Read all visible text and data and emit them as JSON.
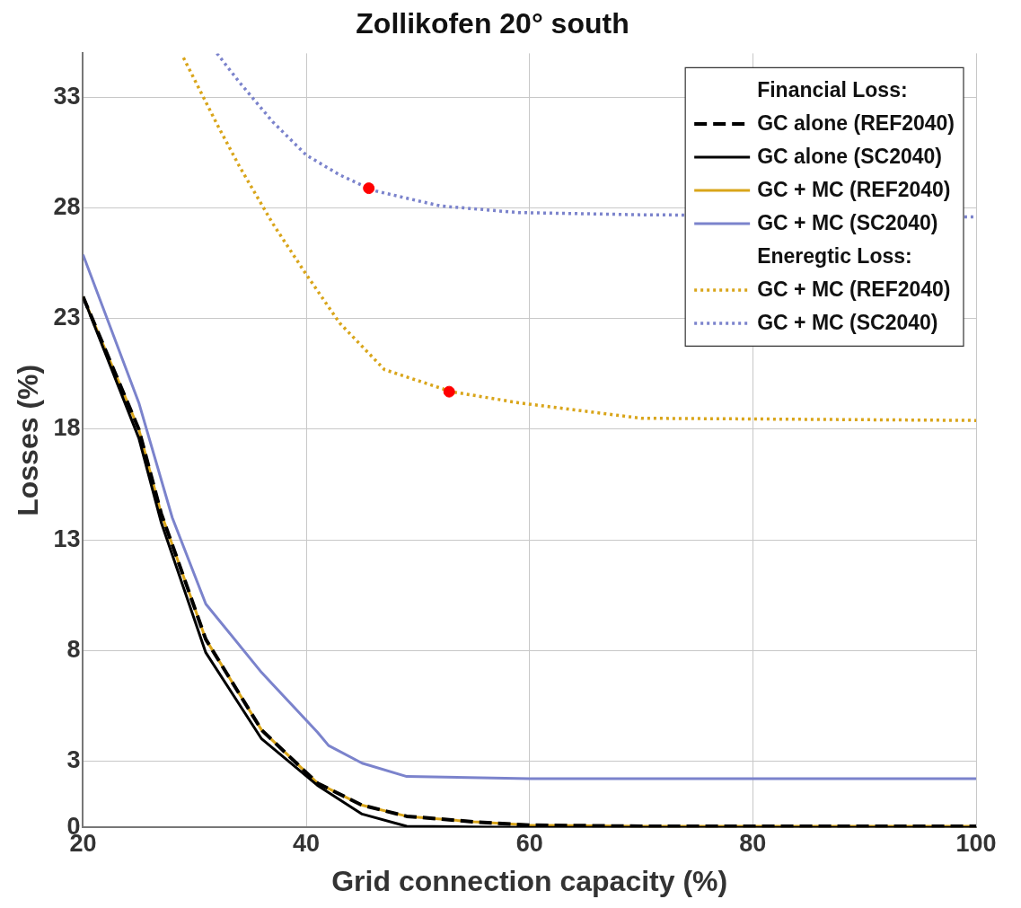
{
  "chart_data": {
    "type": "line",
    "title": "Zollikofen 20° south",
    "xlabel": "Grid connection capacity (%)",
    "ylabel": "Losses (%)",
    "annotations": [
      "Financial Loss:",
      "Eneregtic Loss:"
    ],
    "xlim": [
      20,
      100
    ],
    "xticks": [
      20,
      40,
      60,
      80,
      100
    ],
    "ylim": [
      0,
      35
    ],
    "yticks": [
      0,
      3,
      8,
      13,
      18,
      23,
      28,
      33
    ],
    "grid": true,
    "legend": "top right",
    "series": [
      {
        "name": "GC alone (REF2040)",
        "color": "#000000",
        "line_style": "dashed",
        "x": [
          20,
          25,
          27,
          31,
          36,
          41,
          45,
          49,
          55,
          60,
          70,
          100
        ],
        "values": [
          24,
          18,
          14.2,
          8.5,
          4.4,
          2.0,
          1.0,
          0.5,
          0.25,
          0.1,
          0.05,
          0.05
        ]
      },
      {
        "name": "GC alone (SC2040)",
        "color": "#000000",
        "line_style": "solid",
        "x": [
          20,
          25,
          27,
          31,
          36,
          41,
          45,
          49,
          55,
          60,
          70,
          100
        ],
        "values": [
          24,
          17.6,
          13.8,
          7.9,
          4.0,
          1.9,
          0.6,
          0.05,
          0.02,
          0,
          0,
          0
        ]
      },
      {
        "name": "GC + MC (REF2040)",
        "color": "#d9a51a",
        "line_style": "solid",
        "x": [
          20,
          25,
          27,
          31,
          36,
          41,
          45,
          49,
          55,
          60,
          70,
          100
        ],
        "values": [
          24,
          18,
          14.2,
          8.5,
          4.4,
          2.0,
          1.0,
          0.5,
          0.25,
          0.1,
          0.05,
          0.05
        ]
      },
      {
        "name": "GC + MC (SC2040)",
        "color": "#7b83cc",
        "line_style": "solid",
        "x": [
          20,
          25,
          28,
          31,
          36,
          41,
          42,
          45,
          49,
          60,
          100
        ],
        "values": [
          25.9,
          19.2,
          14,
          10.1,
          7.0,
          4.3,
          3.7,
          2.9,
          2.3,
          2.2,
          2.2
        ]
      },
      {
        "name": "GC + MC (REF2040)",
        "color": "#d9a51a",
        "line_style": "dotted",
        "x": [
          29,
          32,
          34,
          37,
          40,
          43,
          47,
          53,
          59,
          70,
          100
        ],
        "values": [
          34.8,
          31.8,
          29.9,
          27.3,
          25.0,
          22.8,
          20.7,
          19.7,
          19.2,
          18.5,
          18.4
        ]
      },
      {
        "name": "GC + MC (SC2040)",
        "color": "#7b83cc",
        "line_style": "dotted",
        "x": [
          32,
          34,
          37,
          40,
          43,
          46,
          52,
          59,
          70,
          100
        ],
        "values": [
          35,
          33.7,
          31.9,
          30.4,
          29.5,
          28.8,
          28.1,
          27.8,
          27.7,
          27.6
        ]
      },
      {
        "type": "scatter",
        "color": "#ff0000",
        "marker": "circle",
        "x": [
          45.6,
          52.8
        ],
        "values": [
          28.9,
          19.7
        ]
      }
    ]
  }
}
